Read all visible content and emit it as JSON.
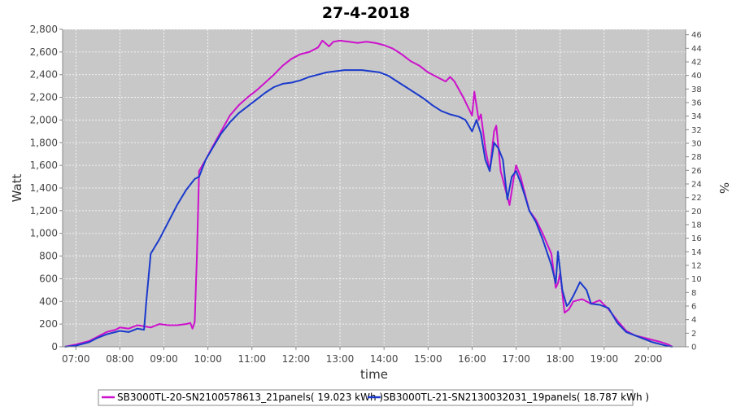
{
  "chart_data": {
    "type": "line",
    "title": "27-4-2018",
    "xlabel": "time",
    "ylabel": "Watt",
    "y2label": "%",
    "xlim": [
      6.7,
      20.85
    ],
    "ylim": [
      0,
      2800
    ],
    "y2lim": [
      0,
      46.8
    ],
    "grid": true,
    "legend_position": "bottom",
    "x_ticks": [
      "07:00",
      "08:00",
      "09:00",
      "10:00",
      "11:00",
      "12:00",
      "13:00",
      "14:00",
      "15:00",
      "16:00",
      "17:00",
      "18:00",
      "19:00",
      "20:00"
    ],
    "x_tick_values": [
      7,
      8,
      9,
      10,
      11,
      12,
      13,
      14,
      15,
      16,
      17,
      18,
      19,
      20
    ],
    "y_ticks": [
      "0",
      "200",
      "400",
      "600",
      "800",
      "1,000",
      "1,200",
      "1,400",
      "1,600",
      "1,800",
      "2,000",
      "2,200",
      "2,400",
      "2,600",
      "2,800"
    ],
    "y_tick_values": [
      0,
      200,
      400,
      600,
      800,
      1000,
      1200,
      1400,
      1600,
      1800,
      2000,
      2200,
      2400,
      2600,
      2800
    ],
    "y2_ticks": [
      "0",
      "2",
      "4",
      "6",
      "8",
      "10",
      "12",
      "14",
      "16",
      "18",
      "20",
      "22",
      "24",
      "26",
      "28",
      "30",
      "32",
      "34",
      "36",
      "38",
      "40",
      "42",
      "44",
      "46"
    ],
    "y2_tick_values": [
      0,
      2,
      4,
      6,
      8,
      10,
      12,
      14,
      16,
      18,
      20,
      22,
      24,
      26,
      28,
      30,
      32,
      34,
      36,
      38,
      40,
      42,
      44,
      46
    ],
    "series": [
      {
        "name": "SB3000TL-20-SN2100578613_21panels( 19.023 kWh )",
        "color": "#cc11cc",
        "x": [
          6.75,
          7.0,
          7.3,
          7.5,
          7.7,
          7.9,
          8.0,
          8.2,
          8.4,
          8.55,
          8.7,
          8.9,
          9.1,
          9.3,
          9.5,
          9.6,
          9.65,
          9.7,
          9.75,
          9.8,
          9.95,
          10.1,
          10.3,
          10.5,
          10.7,
          10.9,
          11.1,
          11.3,
          11.5,
          11.7,
          11.9,
          12.1,
          12.3,
          12.5,
          12.6,
          12.75,
          12.85,
          13.0,
          13.2,
          13.4,
          13.6,
          13.8,
          14.0,
          14.2,
          14.4,
          14.6,
          14.8,
          15.0,
          15.2,
          15.4,
          15.5,
          15.6,
          15.8,
          16.0,
          16.05,
          16.15,
          16.2,
          16.3,
          16.4,
          16.5,
          16.55,
          16.65,
          16.75,
          16.85,
          16.95,
          17.0,
          17.1,
          17.2,
          17.3,
          17.45,
          17.6,
          17.8,
          17.9,
          17.95,
          18.0,
          18.1,
          18.2,
          18.3,
          18.5,
          18.7,
          18.9,
          19.1,
          19.3,
          19.5,
          19.7,
          19.9,
          20.1,
          20.3,
          20.45,
          20.55
        ],
        "y": [
          0,
          20,
          50,
          90,
          130,
          150,
          170,
          160,
          190,
          180,
          170,
          200,
          190,
          190,
          200,
          210,
          160,
          220,
          800,
          1550,
          1650,
          1760,
          1900,
          2040,
          2130,
          2200,
          2260,
          2330,
          2400,
          2480,
          2540,
          2580,
          2600,
          2640,
          2700,
          2650,
          2690,
          2700,
          2690,
          2680,
          2690,
          2680,
          2660,
          2630,
          2580,
          2520,
          2480,
          2420,
          2380,
          2340,
          2380,
          2340,
          2200,
          2040,
          2250,
          2000,
          2050,
          1750,
          1550,
          1900,
          1950,
          1550,
          1400,
          1250,
          1500,
          1600,
          1500,
          1350,
          1200,
          1120,
          1000,
          820,
          520,
          560,
          650,
          300,
          330,
          400,
          420,
          380,
          410,
          330,
          230,
          140,
          100,
          80,
          60,
          40,
          20,
          0
        ]
      },
      {
        "name": "SB3000TL-21-SN2130032031_19panels( 18.787 kWh )",
        "color": "#1a3acc",
        "x": [
          6.75,
          7.0,
          7.3,
          7.5,
          7.7,
          7.9,
          8.0,
          8.2,
          8.4,
          8.55,
          8.6,
          8.7,
          8.9,
          9.1,
          9.3,
          9.5,
          9.7,
          9.8,
          9.95,
          10.1,
          10.3,
          10.5,
          10.7,
          10.9,
          11.1,
          11.3,
          11.5,
          11.7,
          11.9,
          12.1,
          12.3,
          12.5,
          12.7,
          12.9,
          13.1,
          13.3,
          13.5,
          13.7,
          13.9,
          14.1,
          14.3,
          14.5,
          14.7,
          14.9,
          15.1,
          15.3,
          15.5,
          15.7,
          15.85,
          16.0,
          16.1,
          16.2,
          16.3,
          16.4,
          16.5,
          16.6,
          16.7,
          16.8,
          16.9,
          17.0,
          17.1,
          17.2,
          17.3,
          17.45,
          17.6,
          17.8,
          17.9,
          17.95,
          18.05,
          18.15,
          18.2,
          18.3,
          18.45,
          18.6,
          18.7,
          18.9,
          19.1,
          19.3,
          19.5,
          19.7,
          19.9,
          20.1,
          20.3,
          20.45,
          20.55
        ],
        "y": [
          0,
          10,
          40,
          80,
          110,
          130,
          140,
          130,
          160,
          150,
          400,
          820,
          950,
          1100,
          1250,
          1380,
          1480,
          1500,
          1650,
          1750,
          1880,
          1980,
          2060,
          2120,
          2180,
          2240,
          2290,
          2320,
          2330,
          2350,
          2380,
          2400,
          2420,
          2430,
          2440,
          2440,
          2440,
          2430,
          2420,
          2390,
          2340,
          2290,
          2240,
          2190,
          2130,
          2080,
          2050,
          2030,
          2000,
          1900,
          2000,
          1880,
          1650,
          1550,
          1800,
          1750,
          1650,
          1300,
          1500,
          1550,
          1450,
          1330,
          1200,
          1100,
          950,
          720,
          560,
          840,
          500,
          360,
          380,
          450,
          570,
          500,
          380,
          370,
          340,
          210,
          130,
          100,
          70,
          40,
          20,
          5,
          0
        ]
      }
    ]
  }
}
